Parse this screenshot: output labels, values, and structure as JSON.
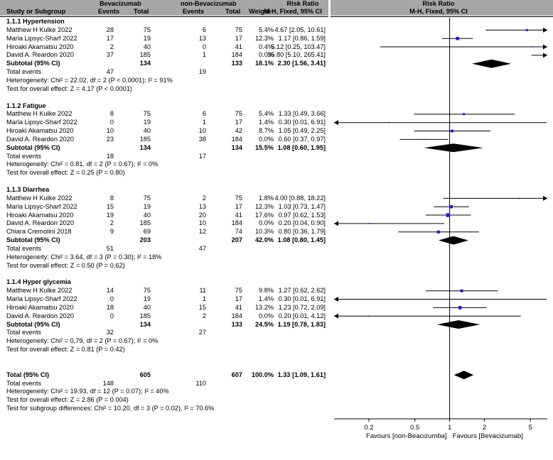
{
  "header": {
    "col_study": "Study or Subgroup",
    "group1": "Bevacizumab",
    "group2": "non-Bevacizumab",
    "events": "Events",
    "total": "Total",
    "weight": "Weight",
    "rr_title": "Risk Ratio",
    "rr_sub": "M-H, Fixed, 95% CI",
    "plot_title": "Risk Ratio",
    "plot_sub": "M-H, Fixed, 95% CI"
  },
  "rows": [
    {
      "kind": "group",
      "label": "1.1.1 Hypertension"
    },
    {
      "kind": "study",
      "label": "Matthew H Kulke 2022",
      "e1": "28",
      "n1": "75",
      "e2": "6",
      "n2": "75",
      "w": "5.4%",
      "ci": "4.67 [2.05, 10.61]"
    },
    {
      "kind": "study",
      "label": "Marla Lipsyc-Sharf  2022",
      "e1": "17",
      "n1": "19",
      "e2": "13",
      "n2": "17",
      "w": "12.3%",
      "ci": "1.17 [0.86, 1.59]"
    },
    {
      "kind": "study",
      "label": "Hiroaki Akamatsu  2020",
      "e1": "2",
      "n1": "40",
      "e2": "0",
      "n2": "41",
      "w": "0.4%",
      "ci": "5.12 [0.25, 103.47]"
    },
    {
      "kind": "study",
      "label": "David A. Reardon  2020",
      "e1": "37",
      "n1": "185",
      "e2": "1",
      "n2": "184",
      "w": "0.0%",
      "ci": "36.80 [5.10, 265.41]"
    },
    {
      "kind": "subtotal",
      "label": "Subtotal (95% CI)",
      "n1": "134",
      "n2": "133",
      "w": "18.1%",
      "ci": "2.30 [1.56, 3.41]"
    },
    {
      "kind": "events",
      "label": "Total events",
      "e1": "47",
      "e2": "19"
    },
    {
      "kind": "note",
      "label": "Heterogeneity: Chi² = 22.02, df = 2 (P < 0.0001); I² = 91%"
    },
    {
      "kind": "note",
      "label": "Test for overall effect: Z = 4.17 (P < 0.0001)"
    },
    {
      "kind": "gap"
    },
    {
      "kind": "group",
      "label": "1.1.2 Fatigue"
    },
    {
      "kind": "study",
      "label": "Matthew H Kulke 2022",
      "e1": "8",
      "n1": "75",
      "e2": "6",
      "n2": "75",
      "w": "5.4%",
      "ci": "1.33 [0.49, 3.66]"
    },
    {
      "kind": "study",
      "label": "Marla Lipsyc-Sharf  2022",
      "e1": "0",
      "n1": "19",
      "e2": "1",
      "n2": "17",
      "w": "1.4%",
      "ci": "0.30 [0.01, 6.91]"
    },
    {
      "kind": "study",
      "label": "Hiroaki Akamatsu  2020",
      "e1": "10",
      "n1": "40",
      "e2": "10",
      "n2": "42",
      "w": "8.7%",
      "ci": "1.05 [0.49, 2.25]"
    },
    {
      "kind": "study",
      "label": "David A. Reardon  2020",
      "e1": "23",
      "n1": "185",
      "e2": "38",
      "n2": "184",
      "w": "0.0%",
      "ci": "0.60 [0.37, 0.97]"
    },
    {
      "kind": "subtotal",
      "label": "Subtotal (95% CI)",
      "n1": "134",
      "n2": "134",
      "w": "15.5%",
      "ci": "1.08 [0.60, 1.95]"
    },
    {
      "kind": "events",
      "label": "Total events",
      "e1": "18",
      "e2": "17"
    },
    {
      "kind": "note",
      "label": "Heterogeneity: Chi² = 0.81, df = 2 (P = 0.67); I² = 0%"
    },
    {
      "kind": "note",
      "label": "Test for overall effect: Z = 0.25 (P = 0.80)"
    },
    {
      "kind": "gap"
    },
    {
      "kind": "group",
      "label": "1.1.3 Diarrhea"
    },
    {
      "kind": "study",
      "label": "Matthew H Kulke 2022",
      "e1": "8",
      "n1": "75",
      "e2": "2",
      "n2": "75",
      "w": "1.8%",
      "ci": "4.00 [0.88, 18.22]"
    },
    {
      "kind": "study",
      "label": "Marla Lipsyc-Sharf  2022",
      "e1": "15",
      "n1": "19",
      "e2": "13",
      "n2": "17",
      "w": "12.3%",
      "ci": "1.03 [0.73, 1.47]"
    },
    {
      "kind": "study",
      "label": "Hiroaki Akamatsu  2020",
      "e1": "19",
      "n1": "40",
      "e2": "20",
      "n2": "41",
      "w": "17.6%",
      "ci": "0.97 [0.62, 1.53]"
    },
    {
      "kind": "study",
      "label": "David A. Reardon  2020",
      "e1": "2",
      "n1": "185",
      "e2": "10",
      "n2": "184",
      "w": "0.0%",
      "ci": "0.20 [0.04, 0.90]"
    },
    {
      "kind": "study",
      "label": "Chiara Cremolini  2018",
      "e1": "9",
      "n1": "69",
      "e2": "12",
      "n2": "74",
      "w": "10.3%",
      "ci": "0.80 [0.36, 1.79]"
    },
    {
      "kind": "subtotal",
      "label": "Subtotal (95% CI)",
      "n1": "203",
      "n2": "207",
      "w": "42.0%",
      "ci": "1.08 [0.80, 1.45]"
    },
    {
      "kind": "events",
      "label": "Total events",
      "e1": "51",
      "e2": "47"
    },
    {
      "kind": "note",
      "label": "Heterogeneity: Chi² = 3.64, df = 3 (P = 0.30); I² = 18%"
    },
    {
      "kind": "note",
      "label": "Test for overall effect: Z = 0.50 (P = 0.62)"
    },
    {
      "kind": "gap"
    },
    {
      "kind": "group",
      "label": "1.1.4 Hyper glycemia"
    },
    {
      "kind": "study",
      "label": "Matthew H Kulke 2022",
      "e1": "14",
      "n1": "75",
      "e2": "11",
      "n2": "75",
      "w": "9.8%",
      "ci": "1.27 [0.62, 2.62]"
    },
    {
      "kind": "study",
      "label": "Marla Lipsyc-Sharf  2022",
      "e1": "0",
      "n1": "19",
      "e2": "1",
      "n2": "17",
      "w": "1.4%",
      "ci": "0.30 [0.01, 6.91]"
    },
    {
      "kind": "study",
      "label": "Hiroaki Akamatsu  2020",
      "e1": "18",
      "n1": "40",
      "e2": "15",
      "n2": "41",
      "w": "13.2%",
      "ci": "1.23 [0.72, 2.09]"
    },
    {
      "kind": "study",
      "label": "David A. Reardon  2020",
      "e1": "0",
      "n1": "185",
      "e2": "2",
      "n2": "184",
      "w": "0.0%",
      "ci": "0.20 [0.01, 4.12]"
    },
    {
      "kind": "subtotal",
      "label": "Subtotal (95% CI)",
      "n1": "134",
      "n2": "133",
      "w": "24.5%",
      "ci": "1.19 [0.78, 1.83]"
    },
    {
      "kind": "events",
      "label": "Total events",
      "e1": "32",
      "e2": "27"
    },
    {
      "kind": "note",
      "label": "Heterogeneity: Chi² = 0.79, df = 2 (P = 0.67); I² = 0%"
    },
    {
      "kind": "note",
      "label": "Test for overall effect: Z = 0.81 (P = 0.42)"
    },
    {
      "kind": "gap"
    },
    {
      "kind": "gap"
    },
    {
      "kind": "total",
      "label": "Total (95% CI)",
      "n1": "605",
      "n2": "607",
      "w": "100.0%",
      "ci": "1.33 [1.09, 1.61]"
    },
    {
      "kind": "events",
      "label": "Total events",
      "e1": "148",
      "e2": "110"
    },
    {
      "kind": "note",
      "label": "Heterogeneity: Chi² = 19.93, df = 12 (P = 0.07); I² = 40%"
    },
    {
      "kind": "note",
      "label": "Test for overall effect: Z = 2.86 (P = 0.004)"
    },
    {
      "kind": "note",
      "label": "Test for subgroup differences: Chi² = 10.20, df = 3 (P = 0.02), I² = 70.6%"
    }
  ],
  "chart_data": {
    "type": "forest",
    "scale": "log",
    "xlim": [
      0.1,
      7
    ],
    "reference_line": 1,
    "ticks": [
      0.2,
      0.5,
      1,
      2,
      5
    ],
    "tick_labels": [
      "0.2",
      "0.5",
      "1",
      "2",
      "5"
    ],
    "favours_left": "Favours [non-Beacizumba]",
    "favours_right": "Favours [Bevacizumab]",
    "marker_color": "#1f1fc4",
    "estimates": [
      {
        "label": "Matthew H Kulke 2022",
        "group": "1.1.1",
        "rr": 4.67,
        "lo": 2.05,
        "hi": 10.61,
        "weight": 5.4
      },
      {
        "label": "Marla Lipsyc-Sharf 2022",
        "group": "1.1.1",
        "rr": 1.17,
        "lo": 0.86,
        "hi": 1.59,
        "weight": 12.3
      },
      {
        "label": "Hiroaki Akamatsu 2020",
        "group": "1.1.1",
        "rr": 5.12,
        "lo": 0.25,
        "hi": 103.47,
        "weight": 0.4
      },
      {
        "label": "David A. Reardon 2020",
        "group": "1.1.1",
        "rr": 36.8,
        "lo": 5.1,
        "hi": 265.41,
        "weight": 0.0
      },
      {
        "label": "Subtotal 1.1.1",
        "group": "1.1.1",
        "rr": 2.3,
        "lo": 1.56,
        "hi": 3.41,
        "weight": 18.1,
        "diamond": true
      },
      {
        "label": "Matthew H Kulke 2022",
        "group": "1.1.2",
        "rr": 1.33,
        "lo": 0.49,
        "hi": 3.66,
        "weight": 5.4
      },
      {
        "label": "Marla Lipsyc-Sharf 2022",
        "group": "1.1.2",
        "rr": 0.3,
        "lo": 0.01,
        "hi": 6.91,
        "weight": 1.4
      },
      {
        "label": "Hiroaki Akamatsu 2020",
        "group": "1.1.2",
        "rr": 1.05,
        "lo": 0.49,
        "hi": 2.25,
        "weight": 8.7
      },
      {
        "label": "David A. Reardon 2020",
        "group": "1.1.2",
        "rr": 0.6,
        "lo": 0.37,
        "hi": 0.97,
        "weight": 0.0
      },
      {
        "label": "Subtotal 1.1.2",
        "group": "1.1.2",
        "rr": 1.08,
        "lo": 0.6,
        "hi": 1.95,
        "weight": 15.5,
        "diamond": true
      },
      {
        "label": "Matthew H Kulke 2022",
        "group": "1.1.3",
        "rr": 4.0,
        "lo": 0.88,
        "hi": 18.22,
        "weight": 1.8
      },
      {
        "label": "Marla Lipsyc-Sharf 2022",
        "group": "1.1.3",
        "rr": 1.03,
        "lo": 0.73,
        "hi": 1.47,
        "weight": 12.3
      },
      {
        "label": "Hiroaki Akamatsu 2020",
        "group": "1.1.3",
        "rr": 0.97,
        "lo": 0.62,
        "hi": 1.53,
        "weight": 17.6
      },
      {
        "label": "David A. Reardon 2020",
        "group": "1.1.3",
        "rr": 0.2,
        "lo": 0.04,
        "hi": 0.9,
        "weight": 0.0
      },
      {
        "label": "Chiara Cremolini 2018",
        "group": "1.1.3",
        "rr": 0.8,
        "lo": 0.36,
        "hi": 1.79,
        "weight": 10.3
      },
      {
        "label": "Subtotal 1.1.3",
        "group": "1.1.3",
        "rr": 1.08,
        "lo": 0.8,
        "hi": 1.45,
        "weight": 42.0,
        "diamond": true
      },
      {
        "label": "Matthew H Kulke 2022",
        "group": "1.1.4",
        "rr": 1.27,
        "lo": 0.62,
        "hi": 2.62,
        "weight": 9.8
      },
      {
        "label": "Marla Lipsyc-Sharf 2022",
        "group": "1.1.4",
        "rr": 0.3,
        "lo": 0.01,
        "hi": 6.91,
        "weight": 1.4
      },
      {
        "label": "Hiroaki Akamatsu 2020",
        "group": "1.1.4",
        "rr": 1.23,
        "lo": 0.72,
        "hi": 2.09,
        "weight": 13.2
      },
      {
        "label": "David A. Reardon 2020",
        "group": "1.1.4",
        "rr": 0.2,
        "lo": 0.01,
        "hi": 4.12,
        "weight": 0.0
      },
      {
        "label": "Subtotal 1.1.4",
        "group": "1.1.4",
        "rr": 1.19,
        "lo": 0.78,
        "hi": 1.83,
        "weight": 24.5,
        "diamond": true
      },
      {
        "label": "Total",
        "group": "overall",
        "rr": 1.33,
        "lo": 1.09,
        "hi": 1.61,
        "weight": 100.0,
        "diamond": true
      }
    ]
  }
}
